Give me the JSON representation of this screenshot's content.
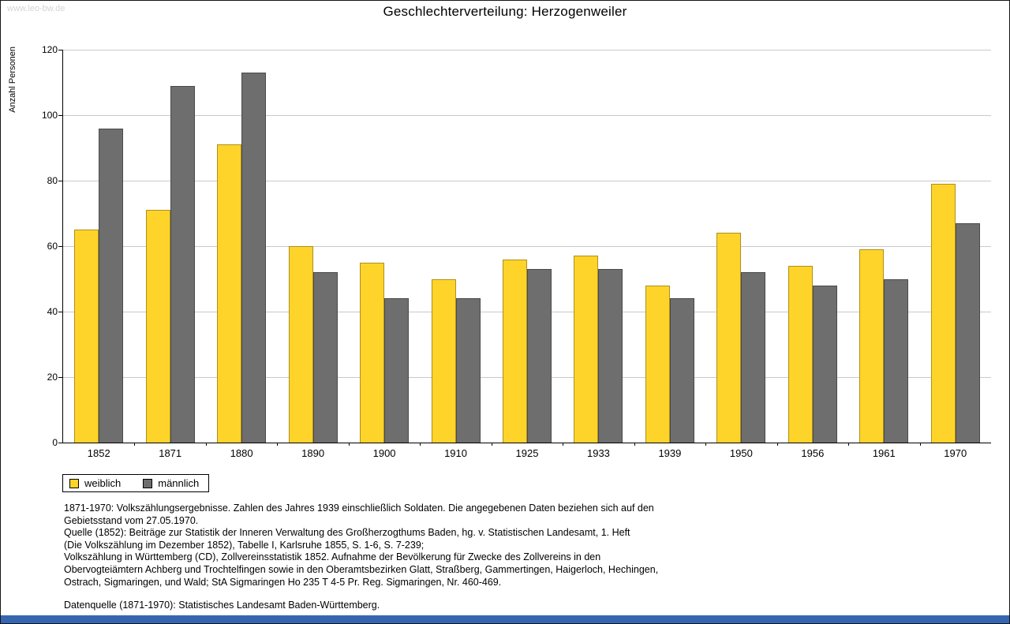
{
  "watermark": "www.leo-bw.de",
  "title": "Geschlechterverteilung: Herzogenweiler",
  "chart_data": {
    "type": "bar",
    "title": "Geschlechterverteilung: Herzogenweiler",
    "xlabel": "",
    "ylabel": "Anzahl Personen",
    "ylim": [
      0,
      120
    ],
    "ytick_step": 20,
    "grid": true,
    "legend_position": "bottom-left",
    "categories": [
      "1852",
      "1871",
      "1880",
      "1890",
      "1900",
      "1910",
      "1925",
      "1933",
      "1939",
      "1950",
      "1956",
      "1961",
      "1970"
    ],
    "series": [
      {
        "name": "weiblich",
        "color": "#FFD42A",
        "values": [
          65,
          71,
          91,
          60,
          55,
          50,
          56,
          57,
          48,
          64,
          54,
          59,
          79
        ]
      },
      {
        "name": "männlich",
        "color": "#6E6E6E",
        "values": [
          96,
          109,
          113,
          52,
          44,
          44,
          53,
          53,
          44,
          52,
          48,
          50,
          67
        ]
      }
    ]
  },
  "notes": {
    "lines": [
      "1871-1970: Volkszählungsergebnisse. Zahlen des Jahres 1939 einschließlich Soldaten. Die angegebenen Daten beziehen sich auf den",
      "Gebietsstand vom 27.05.1970.",
      "Quelle (1852): Beiträge zur Statistik der Inneren Verwaltung des Großherzogthums Baden, hg. v. Statistischen Landesamt, 1. Heft",
      "(Die Volkszählung im Dezember 1852), Tabelle I, Karlsruhe 1855, S. 1-6, S. 7-239;",
      "Volkszählung in Württemberg (CD), Zollvereinsstatistik 1852. Aufnahme der Bevölkerung für Zwecke des Zollvereins in den",
      "Obervogteiämtern Achberg und Trochtelfingen sowie in den Oberamtsbezirken Glatt, Straßberg, Gammertingen, Haigerloch, Hechingen,",
      "Ostrach, Sigmaringen, und Wald; StA Sigmaringen Ho 235 T 4-5 Pr. Reg. Sigmaringen, Nr. 460-469."
    ],
    "source": "Datenquelle (1871-1970): Statistisches Landesamt Baden-Württemberg."
  },
  "colors": {
    "footer_bar": "#3766B1",
    "grid": "#C9C9C9",
    "watermark": "#D4D4D4"
  }
}
